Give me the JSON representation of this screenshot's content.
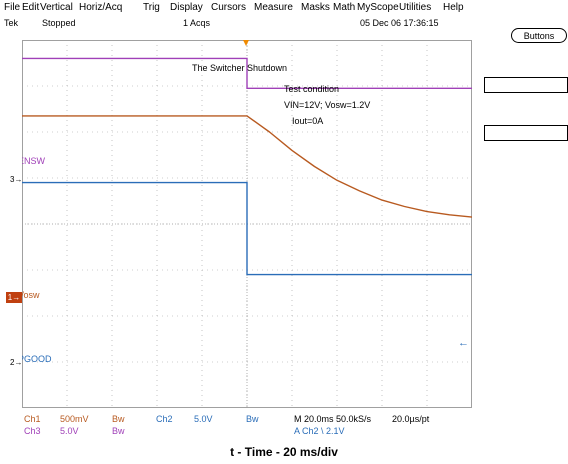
{
  "menu": [
    "File",
    "Edit",
    "Vertical",
    "Horiz/Acq",
    "Trig",
    "Display",
    "Cursors",
    "Measure",
    "Masks",
    "Math",
    "MyScope",
    "Utilities",
    "Help"
  ],
  "status": {
    "brand": "Tek",
    "state": "Stopped",
    "acqs": "1 Acqs",
    "datetime": "05 Dec 06 17:36:15"
  },
  "buttons_label": "Buttons",
  "plot": {
    "title": "The Switcher Shutdown",
    "condition": [
      "Test condition",
      "VIN=12V; Vosw=1.2V",
      "Iout=0A"
    ],
    "ch_labels": {
      "ensw": "ENSW",
      "vosw": "Vosw",
      "pgood": "PGOOD"
    },
    "markers": {
      "ch3": "3",
      "ch1": "1",
      "ch2": "2"
    }
  },
  "readout": {
    "ch1": "Ch1",
    "ch1_scale": "500mV",
    "bw1": "Bw",
    "ch2": "Ch2",
    "ch2_scale": "5.0V",
    "bw2": "Bw",
    "ch3": "Ch3",
    "ch3_scale": "5.0V",
    "bw3": "Bw",
    "timebase": "M 20.0ms 50.0kS/s",
    "pt": "20.0µs/pt",
    "trigger": "A  Ch2  \\  2.1V"
  },
  "caption": "t - Time - 20 ms/div",
  "colors": {
    "ensw": "#a040b8",
    "vosw": "#b85a20",
    "pgood": "#2a6db8",
    "trigger": "#f08a00",
    "marker_ch1": "#c04010",
    "grid": "#a0a0a0"
  },
  "chart_data": {
    "type": "line",
    "x_unit": "ms",
    "x_per_div": 20,
    "series": [
      {
        "name": "ENSW",
        "points": [
          [
            -100,
            3.6
          ],
          [
            0,
            3.6
          ],
          [
            0,
            2.95
          ],
          [
            100,
            2.95
          ]
        ]
      },
      {
        "name": "Vosw",
        "points": [
          [
            -100,
            2.35
          ],
          [
            0,
            2.35
          ],
          [
            10,
            2.0
          ],
          [
            20,
            1.6
          ],
          [
            30,
            1.25
          ],
          [
            40,
            0.95
          ],
          [
            50,
            0.72
          ],
          [
            60,
            0.52
          ],
          [
            70,
            0.38
          ],
          [
            80,
            0.27
          ],
          [
            90,
            0.2
          ],
          [
            100,
            0.15
          ]
        ]
      },
      {
        "name": "PGOOD",
        "points": [
          [
            -100,
            0.9
          ],
          [
            0,
            0.9
          ],
          [
            0,
            -1.1
          ],
          [
            100,
            -1.1
          ]
        ]
      }
    ]
  }
}
